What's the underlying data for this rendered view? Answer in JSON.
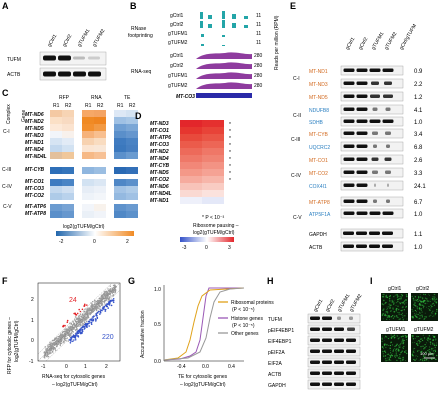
{
  "panels": {
    "A": "A",
    "B": "B",
    "C": "C",
    "D": "D",
    "E": "E",
    "F": "F",
    "G": "G",
    "H": "H",
    "I": "I"
  },
  "A": {
    "lanes": [
      "gCtrl1",
      "gCtrl2",
      "gTUFM1",
      "gTUFM2"
    ],
    "rows": [
      "TUFM",
      "ACTB"
    ]
  },
  "B": {
    "lanes": [
      "gCtrl1",
      "gCtrl2",
      "gTUFM1",
      "gTUFM2"
    ],
    "rows_label_1": "RNase",
    "rows_label_2": "footprinting",
    "rnaseq_label": "RNA-seq",
    "scale_top": [
      "11",
      "11",
      "11",
      "11"
    ],
    "scale_bot": [
      "280",
      "280",
      "280",
      "280"
    ],
    "gene": "MT-CO3",
    "yaxis": "Reads per million (RPM)"
  },
  "C": {
    "headers": [
      "RFP",
      "RNA",
      "TE"
    ],
    "reps": [
      "R1",
      "R2",
      "R1",
      "R2",
      "R1",
      "R2"
    ],
    "complex_header": "Complex",
    "gene_header": "Gene",
    "groups": [
      {
        "name": "C-I",
        "genes": [
          "MT-ND6",
          "MT-ND2",
          "MT-ND5",
          "MT-ND3",
          "MT-ND1",
          "MT-ND4",
          "MT-ND4L"
        ]
      },
      {
        "name": "C-III",
        "genes": [
          "MT-CYB"
        ]
      },
      {
        "name": "C-IV",
        "genes": [
          "MT-CO1",
          "MT-CO3",
          "MT-CO2"
        ]
      },
      {
        "name": "C-V",
        "genes": [
          "MT-ATP6",
          "MT-ATP8"
        ]
      }
    ],
    "legend_label": "log2(gTUFM/gCtrl)",
    "legend_ticks": [
      "-2",
      "0",
      "2"
    ]
  },
  "D": {
    "genes": [
      "MT-ND3",
      "MT-CO1",
      "MT-ATP6",
      "MT-CO3",
      "MT-ND2",
      "MT-ND4",
      "MT-CYB",
      "MT-ND5",
      "MT-CO2",
      "MT-ND6",
      "MT-ND4L",
      "MT-ND1"
    ],
    "stars": [
      "*",
      "*",
      "*",
      "*",
      "*",
      "*",
      "*",
      "*",
      "*"
    ],
    "footnote": "* P < 10⁻³",
    "legend_label_1": "Ribosome pausing –",
    "legend_label_2": "log2(gTUFM/gCtrl)",
    "legend_ticks": [
      "-3",
      "0",
      "3"
    ]
  },
  "E": {
    "lanes": [
      "gCtrl1",
      "gCtrl2",
      "gTUFM1",
      "gTUFM2",
      "gCtrl/gTUFM"
    ],
    "groups": [
      {
        "name": "C-I",
        "rows": [
          {
            "label": "MT-ND1",
            "value": "0.9",
            "color": "#d2691e"
          },
          {
            "label": "MT-ND3",
            "value": "2.2",
            "color": "#d2691e"
          },
          {
            "label": "MT-ND5",
            "value": "1.2",
            "color": "#d2691e"
          },
          {
            "label": "NDUFB8",
            "value": "4.1",
            "color": "#2a7fc1"
          }
        ]
      },
      {
        "name": "C-II",
        "rows": [
          {
            "label": "SDHB",
            "value": "1.0",
            "color": "#2a7fc1"
          }
        ]
      },
      {
        "name": "C-III",
        "rows": [
          {
            "label": "MT-CYB",
            "value": "3.4",
            "color": "#d2691e"
          },
          {
            "label": "UQCRC2",
            "value": "6.8",
            "color": "#2a7fc1"
          }
        ]
      },
      {
        "name": "C-IV",
        "rows": [
          {
            "label": "MT-CO1",
            "value": "2.6",
            "color": "#d2691e"
          },
          {
            "label": "MT-CO2",
            "value": "3.3",
            "color": "#d2691e"
          },
          {
            "label": "COX4I1",
            "value": "24.1",
            "color": "#2a7fc1"
          }
        ]
      },
      {
        "name": "C-V",
        "rows": [
          {
            "label": "MT-ATP8",
            "value": "6.7",
            "color": "#d2691e"
          },
          {
            "label": "ATP5F1A",
            "value": "1.0",
            "color": "#2a7fc1"
          }
        ]
      }
    ],
    "controls": [
      {
        "label": "GAPDH",
        "value": "1.1"
      },
      {
        "label": "ACTB",
        "value": "1.0"
      }
    ]
  },
  "F": {
    "ylabel_1": "RFP for cytosolic genes –",
    "ylabel_2": "log2(gTUFM/gCtrl)",
    "xlabel_1": "RNA-seq for cytosolic genes",
    "xlabel_2": "– log2(gTUFM/gCtrl)",
    "xticks": [
      "-1",
      "0",
      "1",
      "2"
    ],
    "yticks": [
      "-1",
      "0",
      "1",
      "2"
    ],
    "count_up": "24",
    "count_down": "220"
  },
  "G": {
    "ylabel": "Accumulative fraction",
    "xlabel_1": "TE for cytosolic genes",
    "xlabel_2": "– log2(gTUFM/gCtrl)",
    "xticks": [
      "-0.4",
      "0.0",
      "0.4"
    ],
    "yticks": [
      "0.0",
      "0.5",
      "1.0"
    ],
    "legend": [
      {
        "label": "Ribosomal proteins",
        "sub": "(P < 10⁻⁵)",
        "color": "#e0a21a"
      },
      {
        "label": "Histone genes",
        "sub": "(P < 10⁻⁵)",
        "color": "#9b59b6"
      },
      {
        "label": "Other genes",
        "sub": "",
        "color": "#999999"
      }
    ]
  },
  "H": {
    "lanes": [
      "gCtrl1",
      "gCtrl2",
      "gTUFM1",
      "gTUFM2"
    ],
    "rows": [
      "TUFM",
      "pEIF4EBP1",
      "EIF4EBP1",
      "pEIF2A",
      "EIF2A",
      "ACTB",
      "GAPDH"
    ]
  },
  "I": {
    "labels": [
      "gCtrl1",
      "gCtrl2",
      "gTUFM1",
      "gTUFM2"
    ],
    "scale": "100 μm"
  },
  "colors": {
    "heat_blue": "#2166ac",
    "heat_orange": "#f08a24",
    "red_dot": "#e3262b",
    "blue_dot": "#3452c9",
    "green": "#2fae3b",
    "cyan_track": "#23a5a8",
    "purple_track": "#8e3b9e"
  }
}
